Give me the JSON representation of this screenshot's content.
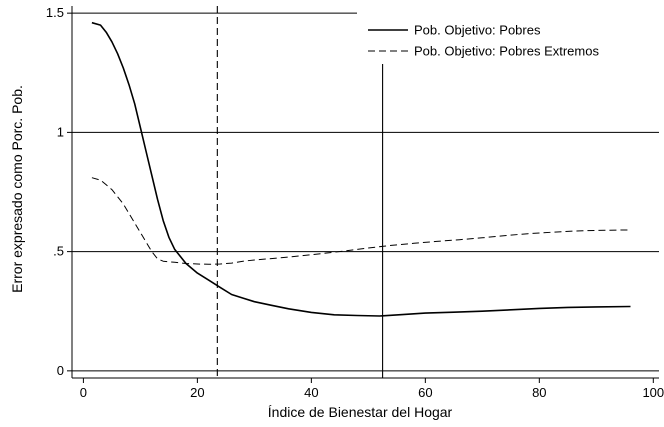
{
  "chart_data": {
    "type": "line",
    "title": "",
    "xlabel": "Índice de Bienestar del Hogar",
    "ylabel": "Error expresado como Porc. Pob.",
    "xlim": [
      -2,
      101
    ],
    "ylim": [
      -0.03,
      1.53
    ],
    "xticks": [
      {
        "value": 0,
        "label": "0"
      },
      {
        "value": 20,
        "label": "20"
      },
      {
        "value": 40,
        "label": "40"
      },
      {
        "value": 60,
        "label": "60"
      },
      {
        "value": 80,
        "label": "80"
      },
      {
        "value": 100,
        "label": "100"
      }
    ],
    "yticks": [
      {
        "value": 0,
        "label": "0"
      },
      {
        "value": 0.5,
        "label": ".5"
      },
      {
        "value": 1,
        "label": "1"
      },
      {
        "value": 1.5,
        "label": "1.5"
      }
    ],
    "grid": "horizontal",
    "legend_position": "top-right",
    "reference_lines_x": [
      {
        "value": 23.5,
        "style": "dashed"
      },
      {
        "value": 52.5,
        "style": "solid"
      }
    ],
    "series": [
      {
        "name": "Pob. Objetivo: Pobres",
        "style": "solid",
        "x": [
          1.5,
          3,
          4,
          5,
          6,
          7,
          8,
          9,
          10,
          11,
          12,
          13,
          14,
          15,
          16,
          17,
          18,
          20,
          22,
          24,
          26,
          28,
          30,
          33,
          36,
          40,
          44,
          48,
          52,
          56,
          60,
          65,
          70,
          75,
          80,
          85,
          90,
          96
        ],
        "y": [
          1.46,
          1.45,
          1.42,
          1.38,
          1.33,
          1.27,
          1.2,
          1.12,
          1.02,
          0.92,
          0.82,
          0.72,
          0.63,
          0.56,
          0.51,
          0.48,
          0.45,
          0.41,
          0.38,
          0.35,
          0.32,
          0.305,
          0.29,
          0.275,
          0.26,
          0.245,
          0.235,
          0.232,
          0.23,
          0.236,
          0.242,
          0.246,
          0.25,
          0.256,
          0.262,
          0.266,
          0.268,
          0.27
        ]
      },
      {
        "name": "Pob. Objetivo: Pobres Extremos",
        "style": "dashed",
        "x": [
          1.5,
          3,
          4,
          5,
          6,
          7,
          8,
          9,
          10,
          11,
          12,
          13,
          14,
          16,
          18,
          20,
          22,
          24,
          26,
          28,
          30,
          34,
          38,
          42,
          46,
          50,
          54,
          58,
          62,
          66,
          70,
          74,
          78,
          82,
          86,
          90,
          96
        ],
        "y": [
          0.81,
          0.8,
          0.78,
          0.76,
          0.73,
          0.7,
          0.66,
          0.62,
          0.58,
          0.54,
          0.5,
          0.47,
          0.46,
          0.455,
          0.45,
          0.448,
          0.447,
          0.448,
          0.452,
          0.46,
          0.465,
          0.473,
          0.482,
          0.492,
          0.503,
          0.515,
          0.526,
          0.535,
          0.543,
          0.55,
          0.558,
          0.567,
          0.575,
          0.581,
          0.586,
          0.589,
          0.591
        ]
      }
    ]
  }
}
